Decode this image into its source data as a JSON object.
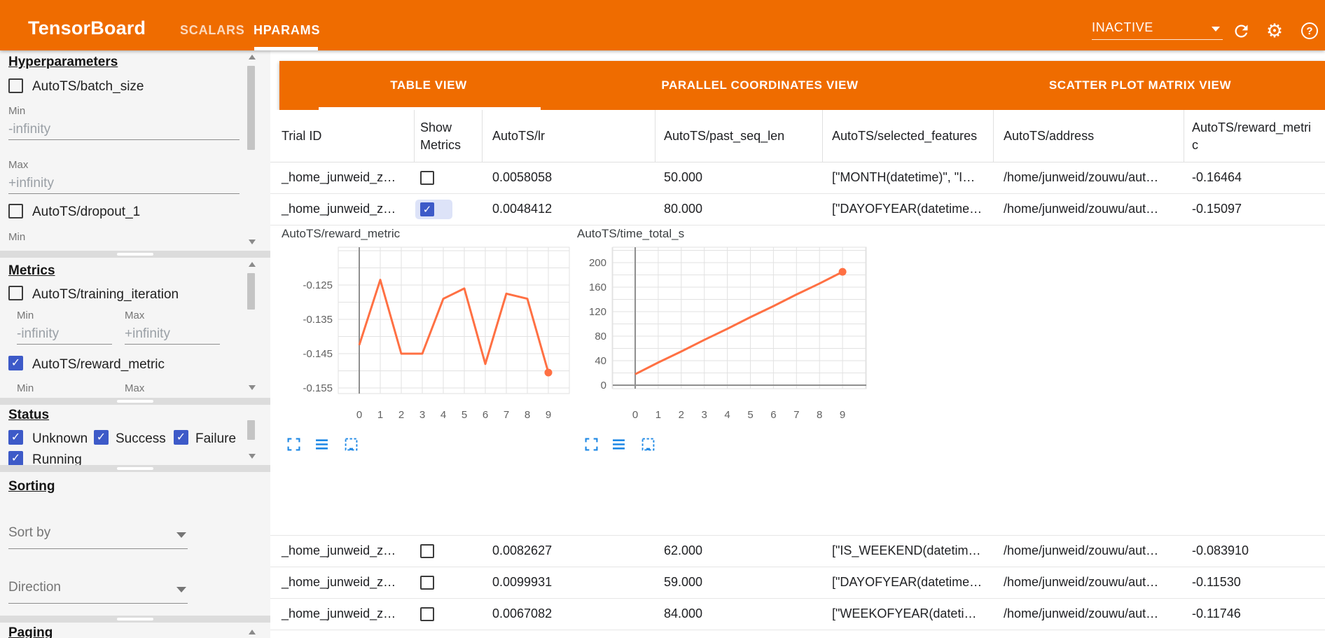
{
  "theme": {
    "appbar_orange": "#ef6c00",
    "checkbox_blue": "#3d5ac8",
    "chart_line_orange": "#ff7043",
    "chart_icon_blue": "#1e88e5"
  },
  "header": {
    "app_title": "TensorBoard",
    "nav_tabs": [
      {
        "label": "SCALARS",
        "active": false
      },
      {
        "label": "HPARAMS",
        "active": true
      }
    ],
    "reload_status": "INACTIVE",
    "help_glyph": "?",
    "gear_glyph": "⚙",
    "icons": [
      "refresh-icon",
      "settings-gear-icon",
      "help-icon"
    ]
  },
  "sidebar": {
    "sections": {
      "hyperparameters": {
        "title": "Hyperparameters",
        "params": [
          {
            "label": "AutoTS/batch_size",
            "checked": false,
            "min_label": "Min",
            "min_value": "-infinity",
            "max_label": "Max",
            "max_value": "+infinity"
          },
          {
            "label": "AutoTS/dropout_1",
            "checked": false,
            "min_label": "Min"
          }
        ]
      },
      "metrics": {
        "title": "Metrics",
        "metrics": [
          {
            "label": "AutoTS/training_iteration",
            "checked": false,
            "min_label": "Min",
            "min_value": "-infinity",
            "max_label": "Max",
            "max_value": "+infinity"
          },
          {
            "label": "AutoTS/reward_metric",
            "checked": true,
            "min_label": "Min",
            "max_label": "Max"
          }
        ]
      },
      "status": {
        "title": "Status",
        "options": [
          {
            "label": "Unknown",
            "checked": true
          },
          {
            "label": "Success",
            "checked": true
          },
          {
            "label": "Failure",
            "checked": true
          },
          {
            "label": "Running",
            "checked": true
          }
        ]
      },
      "sorting": {
        "title": "Sorting",
        "sort_by_label": "Sort by",
        "direction_label": "Direction"
      },
      "paging": {
        "title": "Paging"
      }
    }
  },
  "main": {
    "view_tabs": [
      {
        "label": "TABLE VIEW",
        "active": true
      },
      {
        "label": "PARALLEL COORDINATES VIEW",
        "active": false
      },
      {
        "label": "SCATTER PLOT MATRIX VIEW",
        "active": false
      }
    ],
    "table": {
      "columns": [
        {
          "label": "Trial ID"
        },
        {
          "label": "Show Metrics"
        },
        {
          "label": "AutoTS/lr"
        },
        {
          "label": "AutoTS/past_seq_len"
        },
        {
          "label": "AutoTS/selected_features"
        },
        {
          "label": "AutoTS/address"
        },
        {
          "label": "AutoTS/reward_metric"
        }
      ],
      "rows": [
        {
          "trial_id": "_home_junweid_z…",
          "show_metrics": false,
          "lr": "0.0058058",
          "past_seq_len": "50.000",
          "selected_features": "[\"MONTH(datetime)\", \"I…",
          "address": "/home/junweid/zouwu/aut…",
          "reward_metric": "-0.16464"
        },
        {
          "trial_id": "_home_junweid_z…",
          "show_metrics": true,
          "lr": "0.0048412",
          "past_seq_len": "80.000",
          "selected_features": "[\"DAYOFYEAR(datetime…",
          "address": "/home/junweid/zouwu/aut…",
          "reward_metric": "-0.15097"
        },
        {
          "trial_id": "_home_junweid_z…",
          "show_metrics": false,
          "lr": "0.0082627",
          "past_seq_len": "62.000",
          "selected_features": "[\"IS_WEEKEND(datetim…",
          "address": "/home/junweid/zouwu/aut…",
          "reward_metric": "-0.083910"
        },
        {
          "trial_id": "_home_junweid_z…",
          "show_metrics": false,
          "lr": "0.0099931",
          "past_seq_len": "59.000",
          "selected_features": "[\"DAYOFYEAR(datetime…",
          "address": "/home/junweid/zouwu/aut…",
          "reward_metric": "-0.11530"
        },
        {
          "trial_id": "_home_junweid_z…",
          "show_metrics": false,
          "lr": "0.0067082",
          "past_seq_len": "84.000",
          "selected_features": "[\"WEEKOFYEAR(dateti…",
          "address": "/home/junweid/zouwu/aut…",
          "reward_metric": "-0.11746"
        }
      ]
    },
    "chart_toolbar_icons": [
      "expand-icon",
      "list-icon",
      "dashed-box-icon"
    ]
  },
  "chart_data": [
    {
      "type": "line",
      "title": "AutoTS/reward_metric",
      "x": [
        0,
        1,
        2,
        3,
        4,
        5,
        6,
        7,
        8,
        9
      ],
      "values": [
        -0.1425,
        -0.1235,
        -0.145,
        -0.145,
        -0.129,
        -0.126,
        -0.148,
        -0.1275,
        -0.129,
        -0.1505
      ],
      "xlabel": "",
      "ylabel": "",
      "yticks": [
        -0.125,
        -0.135,
        -0.145,
        -0.155
      ],
      "ylim": [
        -0.158,
        -0.1135
      ],
      "xlim": [
        -1,
        10
      ],
      "grid": true,
      "legend": "none",
      "marker": "last-point"
    },
    {
      "type": "line",
      "title": "AutoTS/time_total_s",
      "x": [
        0,
        1,
        2,
        3,
        4,
        5,
        6,
        7,
        8,
        9
      ],
      "values": [
        18,
        37,
        55,
        74,
        92,
        111,
        129,
        148,
        166,
        185
      ],
      "xlabel": "",
      "ylabel": "",
      "yticks": [
        200,
        160,
        120,
        80,
        40,
        0
      ],
      "ylim": [
        -6,
        226
      ],
      "xlim": [
        -1,
        10
      ],
      "grid": true,
      "legend": "none",
      "marker": "last-point"
    }
  ]
}
